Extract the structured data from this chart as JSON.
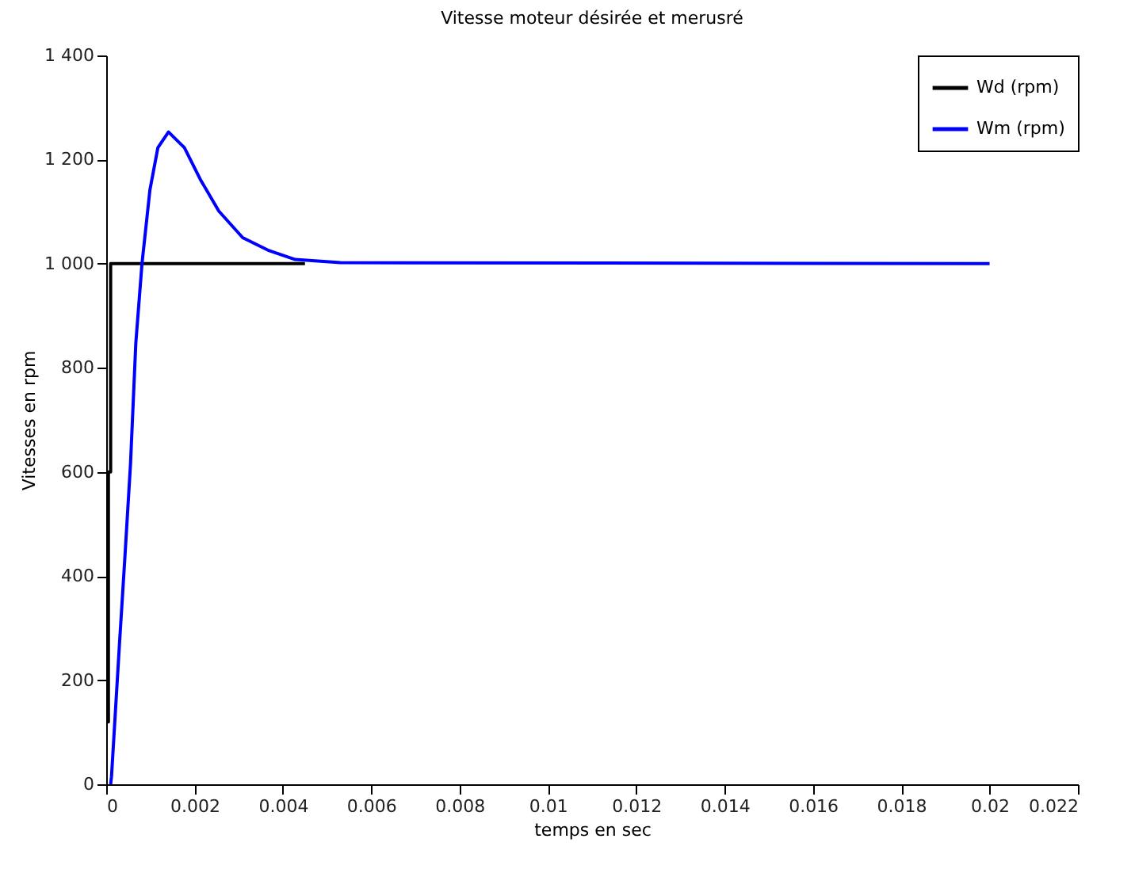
{
  "chart_data": {
    "type": "line",
    "title": "Vitesse moteur désirée et merusré",
    "xlabel": "temps en sec",
    "ylabel": "Vitesses en rpm",
    "xlim": [
      0,
      0.022
    ],
    "xticks": [
      0,
      0.002,
      0.004,
      0.006,
      0.008,
      0.01,
      0.012,
      0.014,
      0.016,
      0.018,
      0.02,
      0.022
    ],
    "ylim": [
      0,
      1400
    ],
    "yticks": [
      0,
      200,
      400,
      600,
      800,
      {
        "value": 1000,
        "label": "1 000"
      },
      {
        "value": 1200,
        "label": "1 200"
      },
      {
        "value": 1400,
        "label": "1 400"
      }
    ],
    "grid": false,
    "legend": "top right",
    "line_style": "solid",
    "series": [
      {
        "name": "Wd (rpm)",
        "color": "#000000",
        "x": [
          0,
          0,
          5e-05,
          5e-05,
          0.0001,
          0.0001,
          0.0045
        ],
        "values": [
          0,
          120,
          120,
          600,
          600,
          1000,
          1000
        ]
      },
      {
        "name": "Wm (rpm)",
        "color": "#0000ff",
        "x": [
          0.0001,
          0.00012,
          0.0003,
          0.00042,
          0.00055,
          0.00067,
          0.00081,
          0.00099,
          0.00117,
          0.00141,
          0.00177,
          0.00213,
          0.00255,
          0.00309,
          0.00369,
          0.00428,
          0.0053,
          0.02
        ],
        "values": [
          0,
          15,
          269,
          432,
          615,
          847,
          1000,
          1142,
          1223,
          1253,
          1223,
          1162,
          1101,
          1050,
          1025,
          1008,
          1002,
          1000
        ]
      }
    ]
  }
}
